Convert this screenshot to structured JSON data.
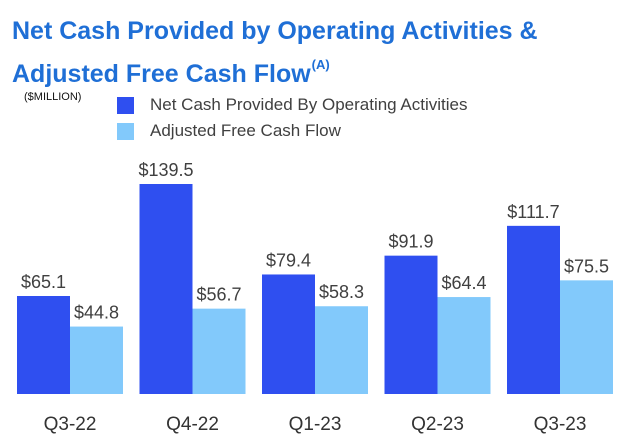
{
  "title": {
    "line1": "Net Cash Provided by Operating Activities &",
    "line2": "Adjusted Free Cash Flow",
    "superscript": "(A)"
  },
  "units_label": "($MILLION)",
  "colors": {
    "title": "#1f6fd6",
    "series1": "#2f4ff0",
    "series2": "#82c9fb",
    "text": "#404040"
  },
  "chart_data": {
    "type": "bar",
    "categories": [
      "Q3-22",
      "Q4-22",
      "Q1-23",
      "Q2-23",
      "Q3-23"
    ],
    "series": [
      {
        "name": "Net Cash Provided By Operating Activities",
        "values": [
          65.1,
          139.5,
          79.4,
          91.9,
          111.7
        ],
        "labels": [
          "$65.1",
          "$139.5",
          "$79.4",
          "$91.9",
          "$111.7"
        ],
        "color": "#2f4ff0"
      },
      {
        "name": "Adjusted Free Cash Flow",
        "values": [
          44.8,
          56.7,
          58.3,
          64.4,
          75.5
        ],
        "labels": [
          "$44.8",
          "$56.7",
          "$58.3",
          "$64.4",
          "$75.5"
        ],
        "color": "#82c9fb"
      }
    ],
    "ylim": [
      0,
      150
    ],
    "grid": false,
    "legend": "top"
  }
}
